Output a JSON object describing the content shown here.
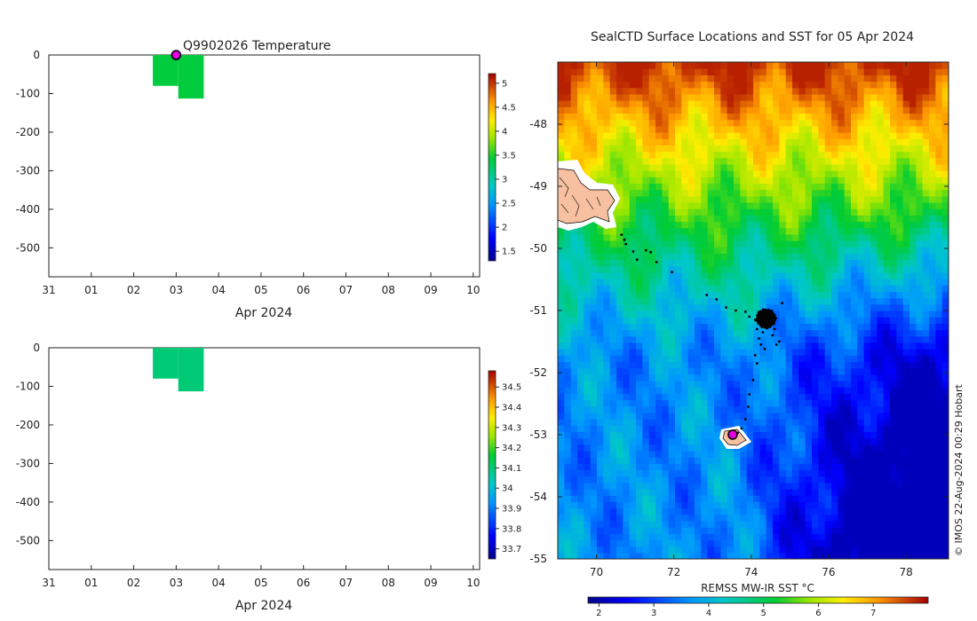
{
  "chart_data": [
    {
      "type": "heatmap",
      "title": "Q9902026  Temperature",
      "xlabel": "Apr 2024",
      "ylabel": "",
      "xlim": [
        -1,
        9.15
      ],
      "x_tick_labels": [
        "31",
        "01",
        "02",
        "03",
        "04",
        "05",
        "06",
        "07",
        "08",
        "09",
        "10"
      ],
      "ylim": [
        -575,
        0
      ],
      "y_ticks": [
        0,
        -100,
        -200,
        -300,
        -400,
        -500
      ],
      "cells": [
        {
          "x0": 1.45,
          "x1": 2.05,
          "y0": 0,
          "y1": -80,
          "value": 3.4
        },
        {
          "x0": 2.05,
          "x1": 2.65,
          "y0": 0,
          "y1": -113,
          "value": 3.4
        }
      ],
      "marker": {
        "x": 2.0,
        "y": 0
      },
      "colorbar": {
        "min": 1.3,
        "max": 5.2,
        "ticks": [
          1.5,
          2,
          2.5,
          3,
          3.5,
          4,
          4.5,
          5
        ],
        "tick_labels": [
          "1.5",
          "2",
          "2.5",
          "3",
          "3.5",
          "4",
          "4.5",
          "5"
        ]
      }
    },
    {
      "type": "heatmap",
      "title": "",
      "xlabel": "Apr 2024",
      "ylabel": "",
      "xlim": [
        -1,
        9.15
      ],
      "x_tick_labels": [
        "31",
        "01",
        "02",
        "03",
        "04",
        "05",
        "06",
        "07",
        "08",
        "09",
        "10"
      ],
      "ylim": [
        -575,
        0
      ],
      "y_ticks": [
        0,
        -100,
        -200,
        -300,
        -400,
        -500
      ],
      "cells": [
        {
          "x0": 1.45,
          "x1": 2.05,
          "y0": 0,
          "y1": -80,
          "value": 34.1
        },
        {
          "x0": 2.05,
          "x1": 2.65,
          "y0": 0,
          "y1": -113,
          "value": 34.1
        }
      ],
      "colorbar": {
        "min": 33.65,
        "max": 34.58,
        "ticks": [
          33.7,
          33.8,
          33.9,
          34,
          34.1,
          34.2,
          34.3,
          34.4,
          34.5
        ],
        "tick_labels": [
          "33.7",
          "33.8",
          "33.9",
          "34",
          "34.1",
          "34.2",
          "34.3",
          "34.4",
          "34.5"
        ]
      }
    },
    {
      "type": "heatmap",
      "title": "SealCTD Surface Locations and SST for 05 Apr 2024",
      "xlabel": "",
      "ylabel": "",
      "xlim": [
        69,
        79.1
      ],
      "ylim": [
        -55,
        -47.0
      ],
      "x_ticks": [
        70,
        72,
        74,
        76,
        78
      ],
      "x_tick_labels": [
        "70",
        "72",
        "74",
        "76",
        "78"
      ],
      "y_ticks": [
        -48,
        -49,
        -50,
        -51,
        -52,
        -53,
        -54,
        -55
      ],
      "y_tick_labels": [
        "-48",
        "-49",
        "-50",
        "-51",
        "-52",
        "-53",
        "-54",
        "-55"
      ],
      "sst_model": {
        "description": "Sea surface temperature (°C) field",
        "north_warm": 7.8,
        "southeast_cold": 2.1,
        "sw_mid": 3.6
      },
      "track": [
        {
          "lon": 70.65,
          "lat": -49.78
        },
        {
          "lon": 70.72,
          "lat": -49.86
        },
        {
          "lon": 70.76,
          "lat": -49.93
        },
        {
          "lon": 70.95,
          "lat": -50.05
        },
        {
          "lon": 71.05,
          "lat": -50.18
        },
        {
          "lon": 71.28,
          "lat": -50.03
        },
        {
          "lon": 71.4,
          "lat": -50.06
        },
        {
          "lon": 71.55,
          "lat": -50.22
        },
        {
          "lon": 71.95,
          "lat": -50.38
        },
        {
          "lon": 72.85,
          "lat": -50.75
        },
        {
          "lon": 73.1,
          "lat": -50.82
        },
        {
          "lon": 73.35,
          "lat": -50.95
        },
        {
          "lon": 73.6,
          "lat": -51.0
        },
        {
          "lon": 73.85,
          "lat": -51.02
        },
        {
          "lon": 73.95,
          "lat": -51.1
        },
        {
          "lon": 74.1,
          "lat": -51.15
        },
        {
          "lon": 74.15,
          "lat": -51.3
        },
        {
          "lon": 74.3,
          "lat": -51.35
        },
        {
          "lon": 74.55,
          "lat": -51.4
        },
        {
          "lon": 74.6,
          "lat": -51.3
        },
        {
          "lon": 74.8,
          "lat": -50.88
        },
        {
          "lon": 74.2,
          "lat": -51.45
        },
        {
          "lon": 74.25,
          "lat": -51.55
        },
        {
          "lon": 74.35,
          "lat": -51.62
        },
        {
          "lon": 74.65,
          "lat": -51.55
        },
        {
          "lon": 74.72,
          "lat": -51.5
        },
        {
          "lon": 74.1,
          "lat": -51.72
        },
        {
          "lon": 74.15,
          "lat": -51.85
        },
        {
          "lon": 74.05,
          "lat": -52.12
        },
        {
          "lon": 73.95,
          "lat": -52.35
        },
        {
          "lon": 73.92,
          "lat": -52.55
        },
        {
          "lon": 73.85,
          "lat": -52.75
        },
        {
          "lon": 73.75,
          "lat": -52.9
        },
        {
          "lon": 73.65,
          "lat": -52.97
        }
      ],
      "cluster": {
        "lon": 74.38,
        "lat": -51.13
      },
      "marker": {
        "lon": 73.52,
        "lat": -53.0
      },
      "colorbar": {
        "label": "REMSS MW-IR SST °C",
        "min": 1.8,
        "max": 8.0,
        "ticks": [
          2,
          3,
          4,
          5,
          6,
          7
        ],
        "tick_labels": [
          "2",
          "3",
          "4",
          "5",
          "6",
          "7"
        ]
      },
      "credit": "© IMOS 22-Aug-2024 00:29 Hobart"
    }
  ]
}
